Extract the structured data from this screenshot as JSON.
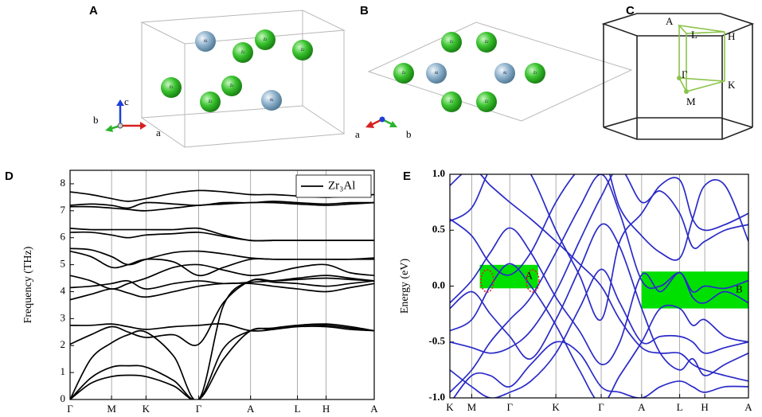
{
  "panel_labels": [
    "A",
    "B",
    "C",
    "D",
    "E"
  ],
  "structure_a": {
    "atoms": [
      "Al",
      "Zr",
      "Zr",
      "Zr",
      "Zr",
      "Zr",
      "Zr",
      "Al"
    ],
    "axes": [
      "c",
      "b",
      "a"
    ]
  },
  "structure_b": {
    "atoms": [
      "Zr",
      "Zr",
      "Zr",
      "Al",
      "Al",
      "Zr",
      "Zr",
      "Zr"
    ],
    "axes": [
      "a",
      "b"
    ]
  },
  "brillouin_zone": {
    "points": [
      "A",
      "L",
      "H",
      "Γ",
      "K",
      "M"
    ]
  },
  "chart_data": [
    {
      "type": "line",
      "ylabel": "Frequency (THz)",
      "x": [
        0,
        0.5,
        1.0,
        1.4,
        1.83,
        2.5,
        3.1,
        3.7,
        4.35,
        4.9,
        5.48,
        6.17,
        6.75,
        7.33
      ],
      "xlim": [
        0,
        7.33
      ],
      "xticks": [
        {
          "value": 0,
          "label": "Γ"
        },
        {
          "value": 1.0,
          "label": "M"
        },
        {
          "value": 1.83,
          "label": "K"
        },
        {
          "value": 3.1,
          "label": "Γ"
        },
        {
          "value": 4.35,
          "label": "A"
        },
        {
          "value": 5.48,
          "label": "L"
        },
        {
          "value": 6.17,
          "label": "H"
        },
        {
          "value": 7.33,
          "label": "A"
        }
      ],
      "ylim": [
        0,
        8.5
      ],
      "yticks": [
        0,
        1,
        2,
        3,
        4,
        5,
        6,
        7,
        8
      ],
      "grid": true,
      "legend": "upper right",
      "series": [
        {
          "name": "Zr₃Al",
          "color": "#000000",
          "values": [
            0,
            0.6,
            0.85,
            0.9,
            0.85,
            0.5,
            0,
            1.5,
            2.55,
            2.6,
            2.7,
            2.7,
            2.6,
            2.55
          ]
        },
        {
          "color": "#000000",
          "values": [
            0,
            0.8,
            1.2,
            1.25,
            1.2,
            0.7,
            0,
            1.9,
            2.55,
            2.65,
            2.75,
            2.75,
            2.65,
            2.55
          ]
        },
        {
          "color": "#000000",
          "values": [
            0,
            1.5,
            2.1,
            2.4,
            2.5,
            1.6,
            0,
            3.5,
            4.4,
            4.4,
            4.45,
            4.5,
            4.45,
            4.4
          ]
        },
        {
          "color": "#000000",
          "values": [
            2.05,
            2.4,
            2.7,
            2.5,
            2.3,
            2.4,
            2.05,
            3.6,
            4.4,
            4.35,
            4.3,
            4.2,
            4.3,
            4.4
          ]
        },
        {
          "color": "#000000",
          "values": [
            2.75,
            2.75,
            2.8,
            2.7,
            2.6,
            2.7,
            2.75,
            2.8,
            2.55,
            2.6,
            2.75,
            2.8,
            2.7,
            2.55
          ]
        },
        {
          "color": "#000000",
          "values": [
            3.7,
            3.9,
            4.1,
            3.95,
            3.8,
            4.0,
            4.2,
            4.3,
            4.3,
            4.2,
            4.1,
            4.0,
            4.15,
            4.3
          ]
        },
        {
          "color": "#000000",
          "values": [
            4.15,
            4.2,
            4.3,
            4.4,
            4.1,
            4.3,
            4.4,
            4.3,
            4.35,
            4.4,
            4.5,
            4.6,
            4.5,
            4.4
          ]
        },
        {
          "color": "#000000",
          "values": [
            4.6,
            4.4,
            4.1,
            4.3,
            4.5,
            4.9,
            5.0,
            4.8,
            4.6,
            4.7,
            4.9,
            5.0,
            4.7,
            4.6
          ]
        },
        {
          "color": "#000000",
          "values": [
            5.5,
            5.3,
            4.9,
            5.0,
            5.2,
            5.1,
            4.6,
            4.9,
            5.2,
            5.2,
            5.2,
            5.2,
            5.2,
            5.2
          ]
        },
        {
          "color": "#000000",
          "values": [
            5.6,
            5.55,
            5.3,
            5.0,
            5.2,
            5.45,
            5.5,
            5.4,
            5.25,
            5.2,
            5.2,
            5.2,
            5.2,
            5.25
          ]
        },
        {
          "color": "#000000",
          "values": [
            6.2,
            6.2,
            6.1,
            6.0,
            6.1,
            6.15,
            6.2,
            6.05,
            5.9,
            5.9,
            5.9,
            5.9,
            5.9,
            5.9
          ]
        },
        {
          "color": "#000000",
          "values": [
            6.35,
            6.3,
            6.3,
            6.3,
            6.3,
            6.3,
            6.35,
            6.1,
            5.9,
            5.9,
            5.9,
            5.9,
            5.9,
            5.9
          ]
        },
        {
          "color": "#000000",
          "values": [
            7.15,
            7.15,
            7.1,
            7.05,
            7.0,
            7.1,
            7.2,
            7.25,
            7.3,
            7.3,
            7.25,
            7.2,
            7.25,
            7.3
          ]
        },
        {
          "color": "#000000",
          "values": [
            7.2,
            7.25,
            7.2,
            7.1,
            7.3,
            7.25,
            7.2,
            7.3,
            7.3,
            7.35,
            7.3,
            7.25,
            7.3,
            7.3
          ]
        },
        {
          "color": "#000000",
          "values": [
            7.7,
            7.6,
            7.45,
            7.35,
            7.45,
            7.65,
            7.75,
            7.7,
            7.6,
            7.6,
            7.55,
            7.5,
            7.55,
            7.6
          ]
        }
      ]
    },
    {
      "type": "line",
      "ylabel": "Energy (eV)",
      "x": [
        0,
        0.27,
        0.5,
        0.74,
        1.0,
        1.31,
        1.6,
        1.87,
        2.1,
        2.37,
        2.6,
        2.84,
        3.0,
        3.15,
        3.4,
        3.69
      ],
      "xlim": [
        0,
        3.69
      ],
      "xticks": [
        {
          "value": 0,
          "label": "K"
        },
        {
          "value": 0.27,
          "label": "M"
        },
        {
          "value": 0.74,
          "label": "Γ"
        },
        {
          "value": 1.31,
          "label": "K"
        },
        {
          "value": 1.87,
          "label": "Γ"
        },
        {
          "value": 2.37,
          "label": "A"
        },
        {
          "value": 2.84,
          "label": "L"
        },
        {
          "value": 3.15,
          "label": "H"
        },
        {
          "value": 3.69,
          "label": "A"
        }
      ],
      "ylim": [
        -1,
        1
      ],
      "yticks": [
        {
          "value": -1,
          "label": "-1.0"
        },
        -0.5,
        {
          "value": 0,
          "label": "0.0"
        },
        0.5,
        {
          "value": 1,
          "label": "1.0"
        }
      ],
      "grid": true,
      "highlights": [
        {
          "label": "A",
          "x": [
            0.37,
            1.09
          ],
          "y": [
            -0.02,
            0.19
          ],
          "color": "#00e000"
        },
        {
          "label": "B",
          "x": [
            2.37,
            3.69
          ],
          "y": [
            -0.2,
            0.13
          ],
          "color": "#00e000"
        }
      ],
      "series": [
        {
          "color": "#2a2ac8",
          "values": [
            0.58,
            0.7,
            1.05,
            1.2,
            1.0,
            0.5,
            0.1,
            -0.3,
            0.4,
            0.65,
            0.9,
            0.95,
            0.6,
            0.5,
            0.55,
            0.65
          ]
        },
        {
          "color": "#2a2ac8",
          "values": [
            0.6,
            0.45,
            0.2,
            0.1,
            0.3,
            0.75,
            1.05,
            1.2,
            0.7,
            0.45,
            0.3,
            0.25,
            0.6,
            0.9,
            0.9,
            0.4
          ]
        },
        {
          "color": "#2a2ac8",
          "values": [
            -0.15,
            0.05,
            0.3,
            0.52,
            0.3,
            -0.1,
            -0.4,
            -0.7,
            -0.5,
            0.1,
            -0.05,
            0.12,
            -0.1,
            -0.15,
            -0.05,
            -0.15
          ]
        },
        {
          "color": "#2a2ac8",
          "values": [
            -0.2,
            -0.05,
            -0.25,
            -0.45,
            -0.65,
            -0.3,
            0.15,
            0.55,
            0.35,
            -0.2,
            -0.6,
            -0.75,
            -0.65,
            -0.8,
            -0.7,
            -0.6
          ]
        },
        {
          "color": "#2a2ac8",
          "values": [
            -0.4,
            -0.3,
            0.0,
            0.2,
            0.0,
            -0.35,
            -0.75,
            -1.05,
            -0.8,
            -0.5,
            -0.2,
            -0.2,
            -0.35,
            -0.3,
            -0.45,
            -0.5
          ]
        },
        {
          "color": "#2a2ac8",
          "values": [
            -0.5,
            -0.55,
            -0.6,
            -0.55,
            -0.4,
            -0.05,
            0.4,
            0.8,
            1.05,
            0.75,
            0.85,
            0.65,
            0.35,
            0.4,
            0.5,
            0.55
          ]
        },
        {
          "color": "#2a2ac8",
          "values": [
            -0.75,
            -0.9,
            -1.0,
            -0.95,
            -0.85,
            -0.6,
            -0.2,
            0.15,
            -0.15,
            -0.5,
            -0.45,
            -0.45,
            -0.5,
            -0.6,
            -0.55,
            -0.5
          ]
        },
        {
          "color": "#2a2ac8",
          "values": [
            -0.95,
            -0.75,
            -0.5,
            -0.3,
            -0.1,
            0.3,
            0.7,
            1.0,
            0.65,
            0.05,
            0.0,
            0.12,
            -0.05,
            0.0,
            -0.02,
            0.05
          ]
        },
        {
          "color": "#2a2ac8",
          "values": [
            0.9,
            1.05,
            0.9,
            0.75,
            0.6,
            0.4,
            0.2,
            0.0,
            -0.3,
            -0.55,
            -0.6,
            -0.6,
            -0.7,
            -0.75,
            -0.8,
            -0.85
          ]
        },
        {
          "color": "#2a2ac8",
          "values": [
            -1.05,
            -0.8,
            -0.8,
            -0.9,
            -0.7,
            -0.5,
            -0.6,
            -0.9,
            -0.95,
            -1.0,
            -0.9,
            -0.85,
            -0.9,
            -0.95,
            -0.9,
            -0.9
          ]
        }
      ]
    }
  ]
}
